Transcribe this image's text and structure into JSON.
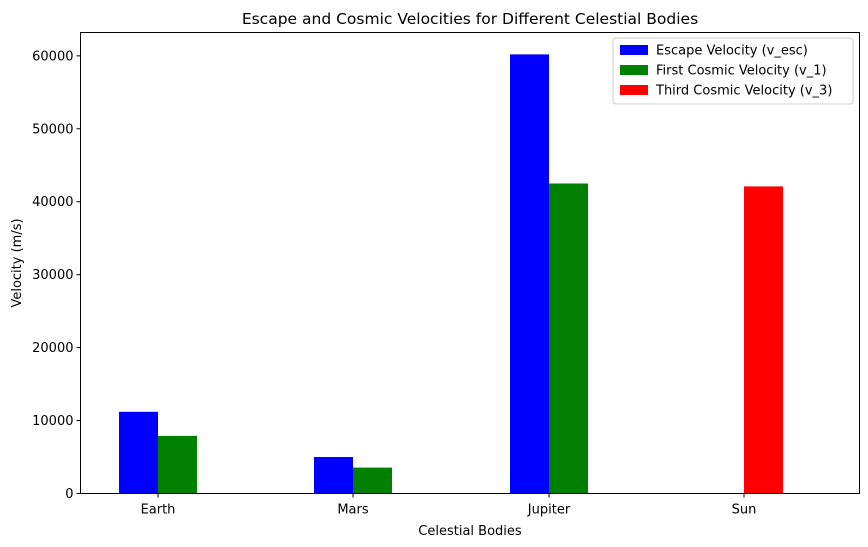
{
  "chart_data": {
    "type": "bar",
    "title": "Escape and Cosmic Velocities for Different Celestial Bodies",
    "xlabel": "Celestial Bodies",
    "ylabel": "Velocity (m/s)",
    "categories": [
      "Earth",
      "Mars",
      "Jupiter",
      "Sun"
    ],
    "ylim": [
      0,
      63200
    ],
    "yticks": [
      0,
      10000,
      20000,
      30000,
      40000,
      50000,
      60000
    ],
    "grid": false,
    "legend_position": "top-right",
    "series": [
      {
        "name": "Escape Velocity (v_esc)",
        "color": "#0000ff",
        "values": [
          11200,
          5000,
          60200,
          null
        ]
      },
      {
        "name": "First Cosmic Velocity (v_1)",
        "color": "#008000",
        "values": [
          7900,
          3550,
          42500,
          null
        ]
      },
      {
        "name": "Third Cosmic Velocity (v_3)",
        "color": "#ff0000",
        "values": [
          null,
          null,
          null,
          42100
        ]
      }
    ]
  }
}
